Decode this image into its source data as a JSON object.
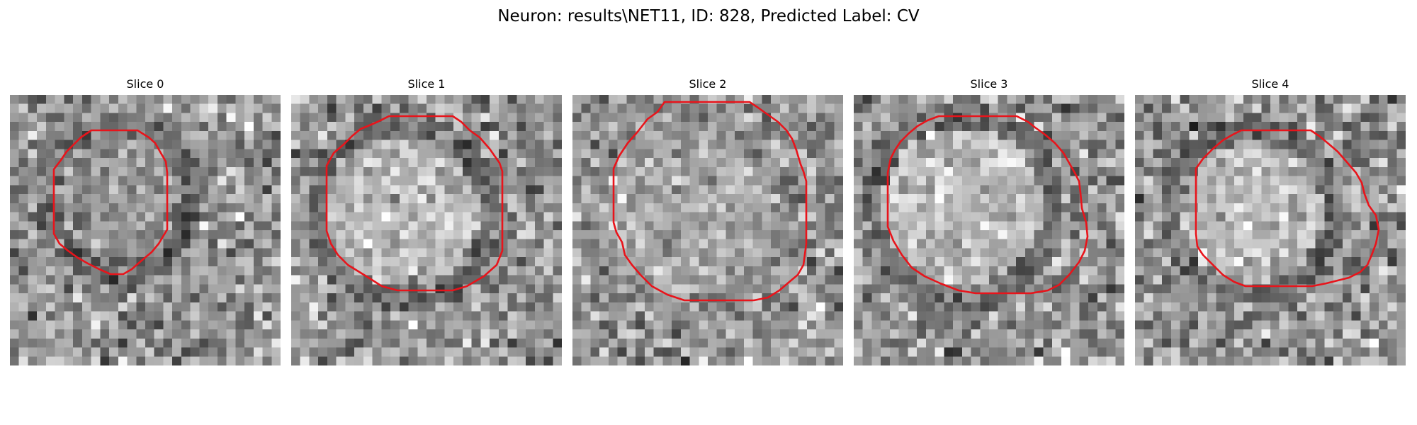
{
  "title": "Neuron: results\\NET11, ID: 828, Predicted Label: CV",
  "colors": {
    "outline": "#e8141b",
    "background": "#ffffff",
    "image_colormap": "grayscale"
  },
  "slices": [
    {
      "label": "Slice 0"
    },
    {
      "label": "Slice 1"
    },
    {
      "label": "Slice 2"
    },
    {
      "label": "Slice 3"
    },
    {
      "label": "Slice 4"
    }
  ]
}
